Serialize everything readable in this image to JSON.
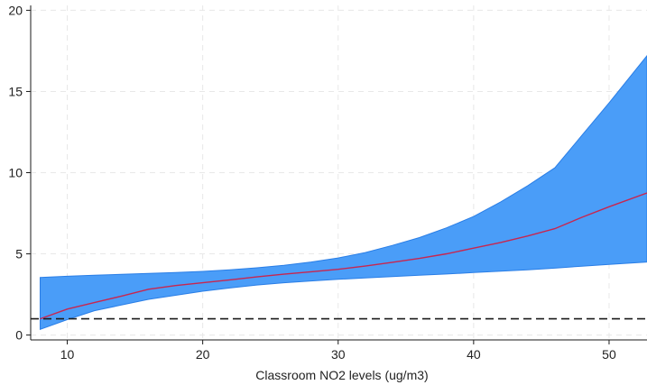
{
  "chart_data": {
    "type": "area",
    "title": "",
    "xlabel": "Classroom NO2 levels (ug/m3)",
    "ylabel": "",
    "xlim": [
      7.3,
      52.8
    ],
    "ylim": [
      -0.3,
      20.3
    ],
    "xticks": [
      10,
      20,
      30,
      40,
      50
    ],
    "yticks": [
      0,
      5,
      10,
      15,
      20
    ],
    "grid": true,
    "reference_line": {
      "y": 1,
      "style": "dashed"
    },
    "band": {
      "x": [
        8,
        10,
        12,
        14,
        16,
        18,
        20,
        22,
        24,
        26,
        28,
        30,
        32,
        34,
        36,
        38,
        40,
        42,
        44,
        46,
        48,
        50,
        52.8
      ],
      "upper": [
        3.55,
        3.62,
        3.68,
        3.74,
        3.79,
        3.85,
        3.92,
        4.02,
        4.14,
        4.3,
        4.5,
        4.75,
        5.08,
        5.52,
        6.0,
        6.6,
        7.3,
        8.2,
        9.2,
        10.3,
        12.3,
        14.3,
        17.2
      ],
      "lower": [
        0.35,
        0.95,
        1.5,
        1.85,
        2.2,
        2.45,
        2.7,
        2.9,
        3.08,
        3.22,
        3.33,
        3.43,
        3.52,
        3.6,
        3.68,
        3.76,
        3.85,
        3.93,
        4.02,
        4.12,
        4.24,
        4.35,
        4.5
      ]
    },
    "series": [
      {
        "x": [
          8,
          10,
          12,
          14,
          16,
          18,
          20,
          22,
          24,
          26,
          28,
          30,
          32,
          34,
          36,
          38,
          40,
          42,
          44,
          46,
          48,
          50,
          52.8
        ],
        "values": [
          1.0,
          1.6,
          2.0,
          2.4,
          2.82,
          3.05,
          3.22,
          3.4,
          3.58,
          3.75,
          3.9,
          4.05,
          4.25,
          4.48,
          4.72,
          5.0,
          5.35,
          5.7,
          6.1,
          6.55,
          7.25,
          7.9,
          8.75
        ]
      }
    ],
    "colors": {
      "band_fill": "#4a9df8",
      "band_stroke": "#2a7ee6",
      "line": "#c8264f",
      "reference": "#1a1a1a",
      "grid": "#e8e8e8",
      "axis": "#1a1a1a"
    }
  }
}
